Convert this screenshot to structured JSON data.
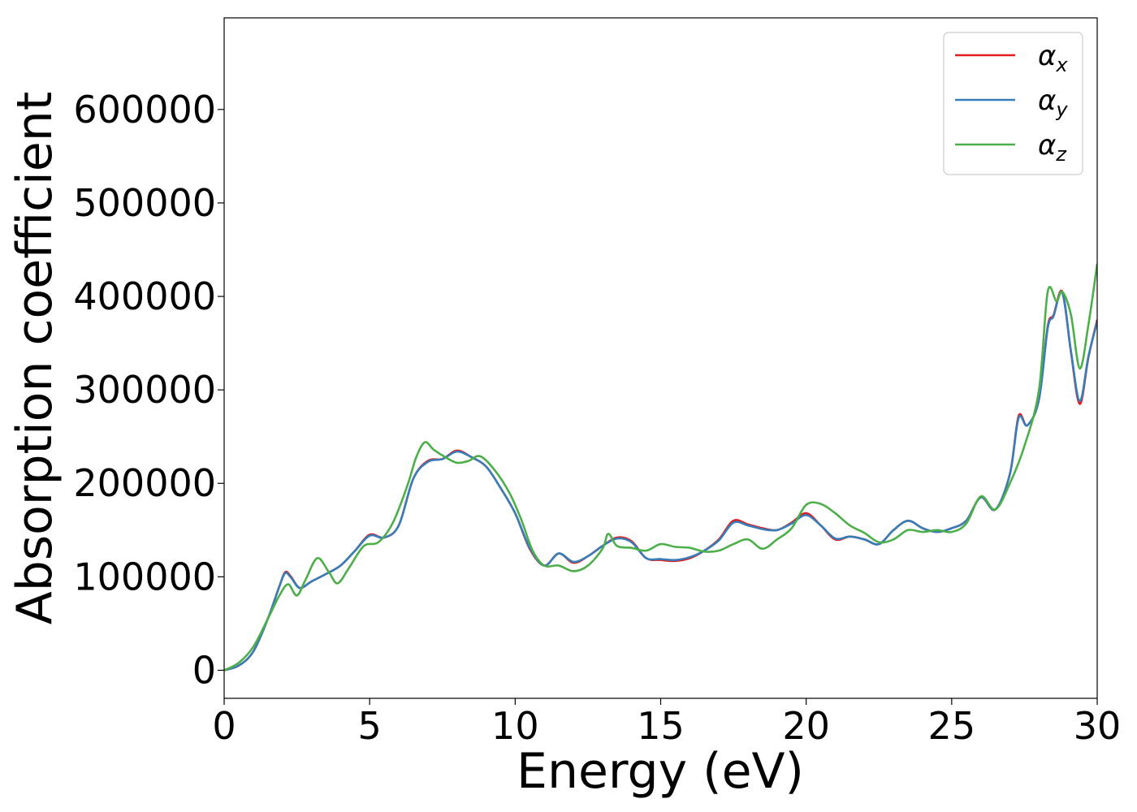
{
  "chart_data": {
    "type": "line",
    "xlabel": "Energy (eV)",
    "ylabel": "Absorption coefficient",
    "xlim": [
      0,
      30
    ],
    "ylim": [
      -30000,
      698000
    ],
    "grid": false,
    "legend_position": "top-right",
    "x_ticks": [
      {
        "value": 0,
        "label": "0"
      },
      {
        "value": 5,
        "label": "5"
      },
      {
        "value": 10,
        "label": "10"
      },
      {
        "value": 15,
        "label": "15"
      },
      {
        "value": 20,
        "label": "20"
      },
      {
        "value": 25,
        "label": "25"
      },
      {
        "value": 30,
        "label": "30"
      }
    ],
    "y_ticks": [
      {
        "value": 0,
        "label": "0"
      },
      {
        "value": 100000,
        "label": "100000"
      },
      {
        "value": 200000,
        "label": "200000"
      },
      {
        "value": 300000,
        "label": "300000"
      },
      {
        "value": 400000,
        "label": "400000"
      },
      {
        "value": 500000,
        "label": "500000"
      },
      {
        "value": 600000,
        "label": "600000"
      }
    ],
    "series": [
      {
        "name": "αx",
        "symbol": "α",
        "subscript": "x",
        "color": "#e41a1c",
        "x": [
          0,
          0.5,
          1,
          1.5,
          1.9,
          2.1,
          2.3,
          2.6,
          3,
          3.5,
          4,
          4.5,
          5,
          5.5,
          6,
          6.5,
          7,
          7.5,
          8,
          8.5,
          9,
          9.5,
          10,
          10.5,
          11,
          11.5,
          12,
          12.5,
          13,
          13.5,
          14,
          14.5,
          15,
          15.5,
          16,
          16.5,
          17,
          17.5,
          18,
          18.5,
          19,
          19.5,
          20,
          20.5,
          21,
          21.5,
          22,
          22.5,
          23,
          23.5,
          24,
          24.5,
          25,
          25.5,
          26,
          26.5,
          27,
          27.3,
          27.6,
          28,
          28.3,
          28.5,
          28.8,
          29.1,
          29.4,
          29.7,
          30
        ],
        "y": [
          0,
          5000,
          20000,
          55000,
          90000,
          105000,
          100000,
          88000,
          95000,
          103000,
          112000,
          128000,
          145000,
          142000,
          155000,
          205000,
          224000,
          226000,
          235000,
          228000,
          218000,
          195000,
          168000,
          130000,
          112000,
          125000,
          115000,
          122000,
          133000,
          142000,
          138000,
          120000,
          118000,
          117000,
          120000,
          128000,
          140000,
          160000,
          156000,
          152000,
          150000,
          158000,
          168000,
          155000,
          140000,
          143000,
          140000,
          135000,
          150000,
          160000,
          152000,
          148000,
          152000,
          160000,
          185000,
          172000,
          210000,
          272000,
          262000,
          290000,
          368000,
          380000,
          405000,
          340000,
          285000,
          335000,
          375000
        ]
      },
      {
        "name": "αy",
        "symbol": "α",
        "subscript": "y",
        "color": "#377eb8",
        "x": [
          0,
          0.5,
          1,
          1.5,
          1.9,
          2.1,
          2.3,
          2.6,
          3,
          3.5,
          4,
          4.5,
          5,
          5.5,
          6,
          6.5,
          7,
          7.5,
          8,
          8.5,
          9,
          9.5,
          10,
          10.5,
          11,
          11.5,
          12,
          12.5,
          13,
          13.5,
          14,
          14.5,
          15,
          15.5,
          16,
          16.5,
          17,
          17.5,
          18,
          18.5,
          19,
          19.5,
          20,
          20.5,
          21,
          21.5,
          22,
          22.5,
          23,
          23.5,
          24,
          24.5,
          25,
          25.5,
          26,
          26.5,
          27,
          27.3,
          27.6,
          28,
          28.3,
          28.5,
          28.8,
          29.1,
          29.4,
          29.7,
          30
        ],
        "y": [
          0,
          5000,
          20000,
          55000,
          90000,
          104000,
          99000,
          88000,
          95000,
          103000,
          112000,
          128000,
          144000,
          142000,
          155000,
          205000,
          223000,
          226000,
          234000,
          228000,
          218000,
          195000,
          168000,
          131000,
          112000,
          125000,
          116000,
          122000,
          133000,
          141000,
          137000,
          120000,
          119000,
          118000,
          121000,
          128000,
          139000,
          158000,
          155000,
          151000,
          150000,
          157000,
          166000,
          155000,
          141000,
          143000,
          140000,
          135000,
          150000,
          160000,
          152000,
          148000,
          152000,
          160000,
          185000,
          172000,
          210000,
          270000,
          262000,
          290000,
          366000,
          379000,
          404000,
          341000,
          288000,
          336000,
          373000
        ]
      },
      {
        "name": "αz",
        "symbol": "α",
        "subscript": "z",
        "color": "#4daf4a",
        "x": [
          0,
          0.5,
          1,
          1.5,
          1.9,
          2.2,
          2.5,
          2.8,
          3.2,
          3.6,
          3.9,
          4.3,
          4.8,
          5.3,
          5.8,
          6.3,
          6.6,
          6.9,
          7.2,
          7.6,
          8,
          8.4,
          8.8,
          9.3,
          9.8,
          10.2,
          10.6,
          11,
          11.5,
          12,
          12.5,
          13,
          13.2,
          13.5,
          14,
          14.5,
          15,
          15.5,
          16,
          16.5,
          17,
          17.5,
          18,
          18.5,
          19,
          19.5,
          20,
          20.5,
          21,
          21.5,
          22,
          22.5,
          23,
          23.5,
          24,
          24.5,
          25,
          25.5,
          26,
          26.5,
          27,
          27.5,
          28,
          28.3,
          28.6,
          28.8,
          29.1,
          29.4,
          29.7,
          30
        ],
        "y": [
          0,
          8000,
          25000,
          55000,
          80000,
          92000,
          80000,
          97000,
          120000,
          105000,
          93000,
          110000,
          133000,
          137000,
          158000,
          198000,
          228000,
          244000,
          236000,
          228000,
          222000,
          224000,
          229000,
          214000,
          190000,
          162000,
          128000,
          112000,
          112000,
          106000,
          112000,
          130000,
          146000,
          133000,
          131000,
          128000,
          135000,
          132000,
          131000,
          127000,
          128000,
          135000,
          140000,
          130000,
          140000,
          152000,
          177000,
          178000,
          168000,
          155000,
          147000,
          137000,
          140000,
          150000,
          148000,
          150000,
          148000,
          157000,
          186000,
          172000,
          200000,
          240000,
          300000,
          405000,
          395000,
          405000,
          380000,
          323000,
          370000,
          435000
        ]
      }
    ]
  }
}
